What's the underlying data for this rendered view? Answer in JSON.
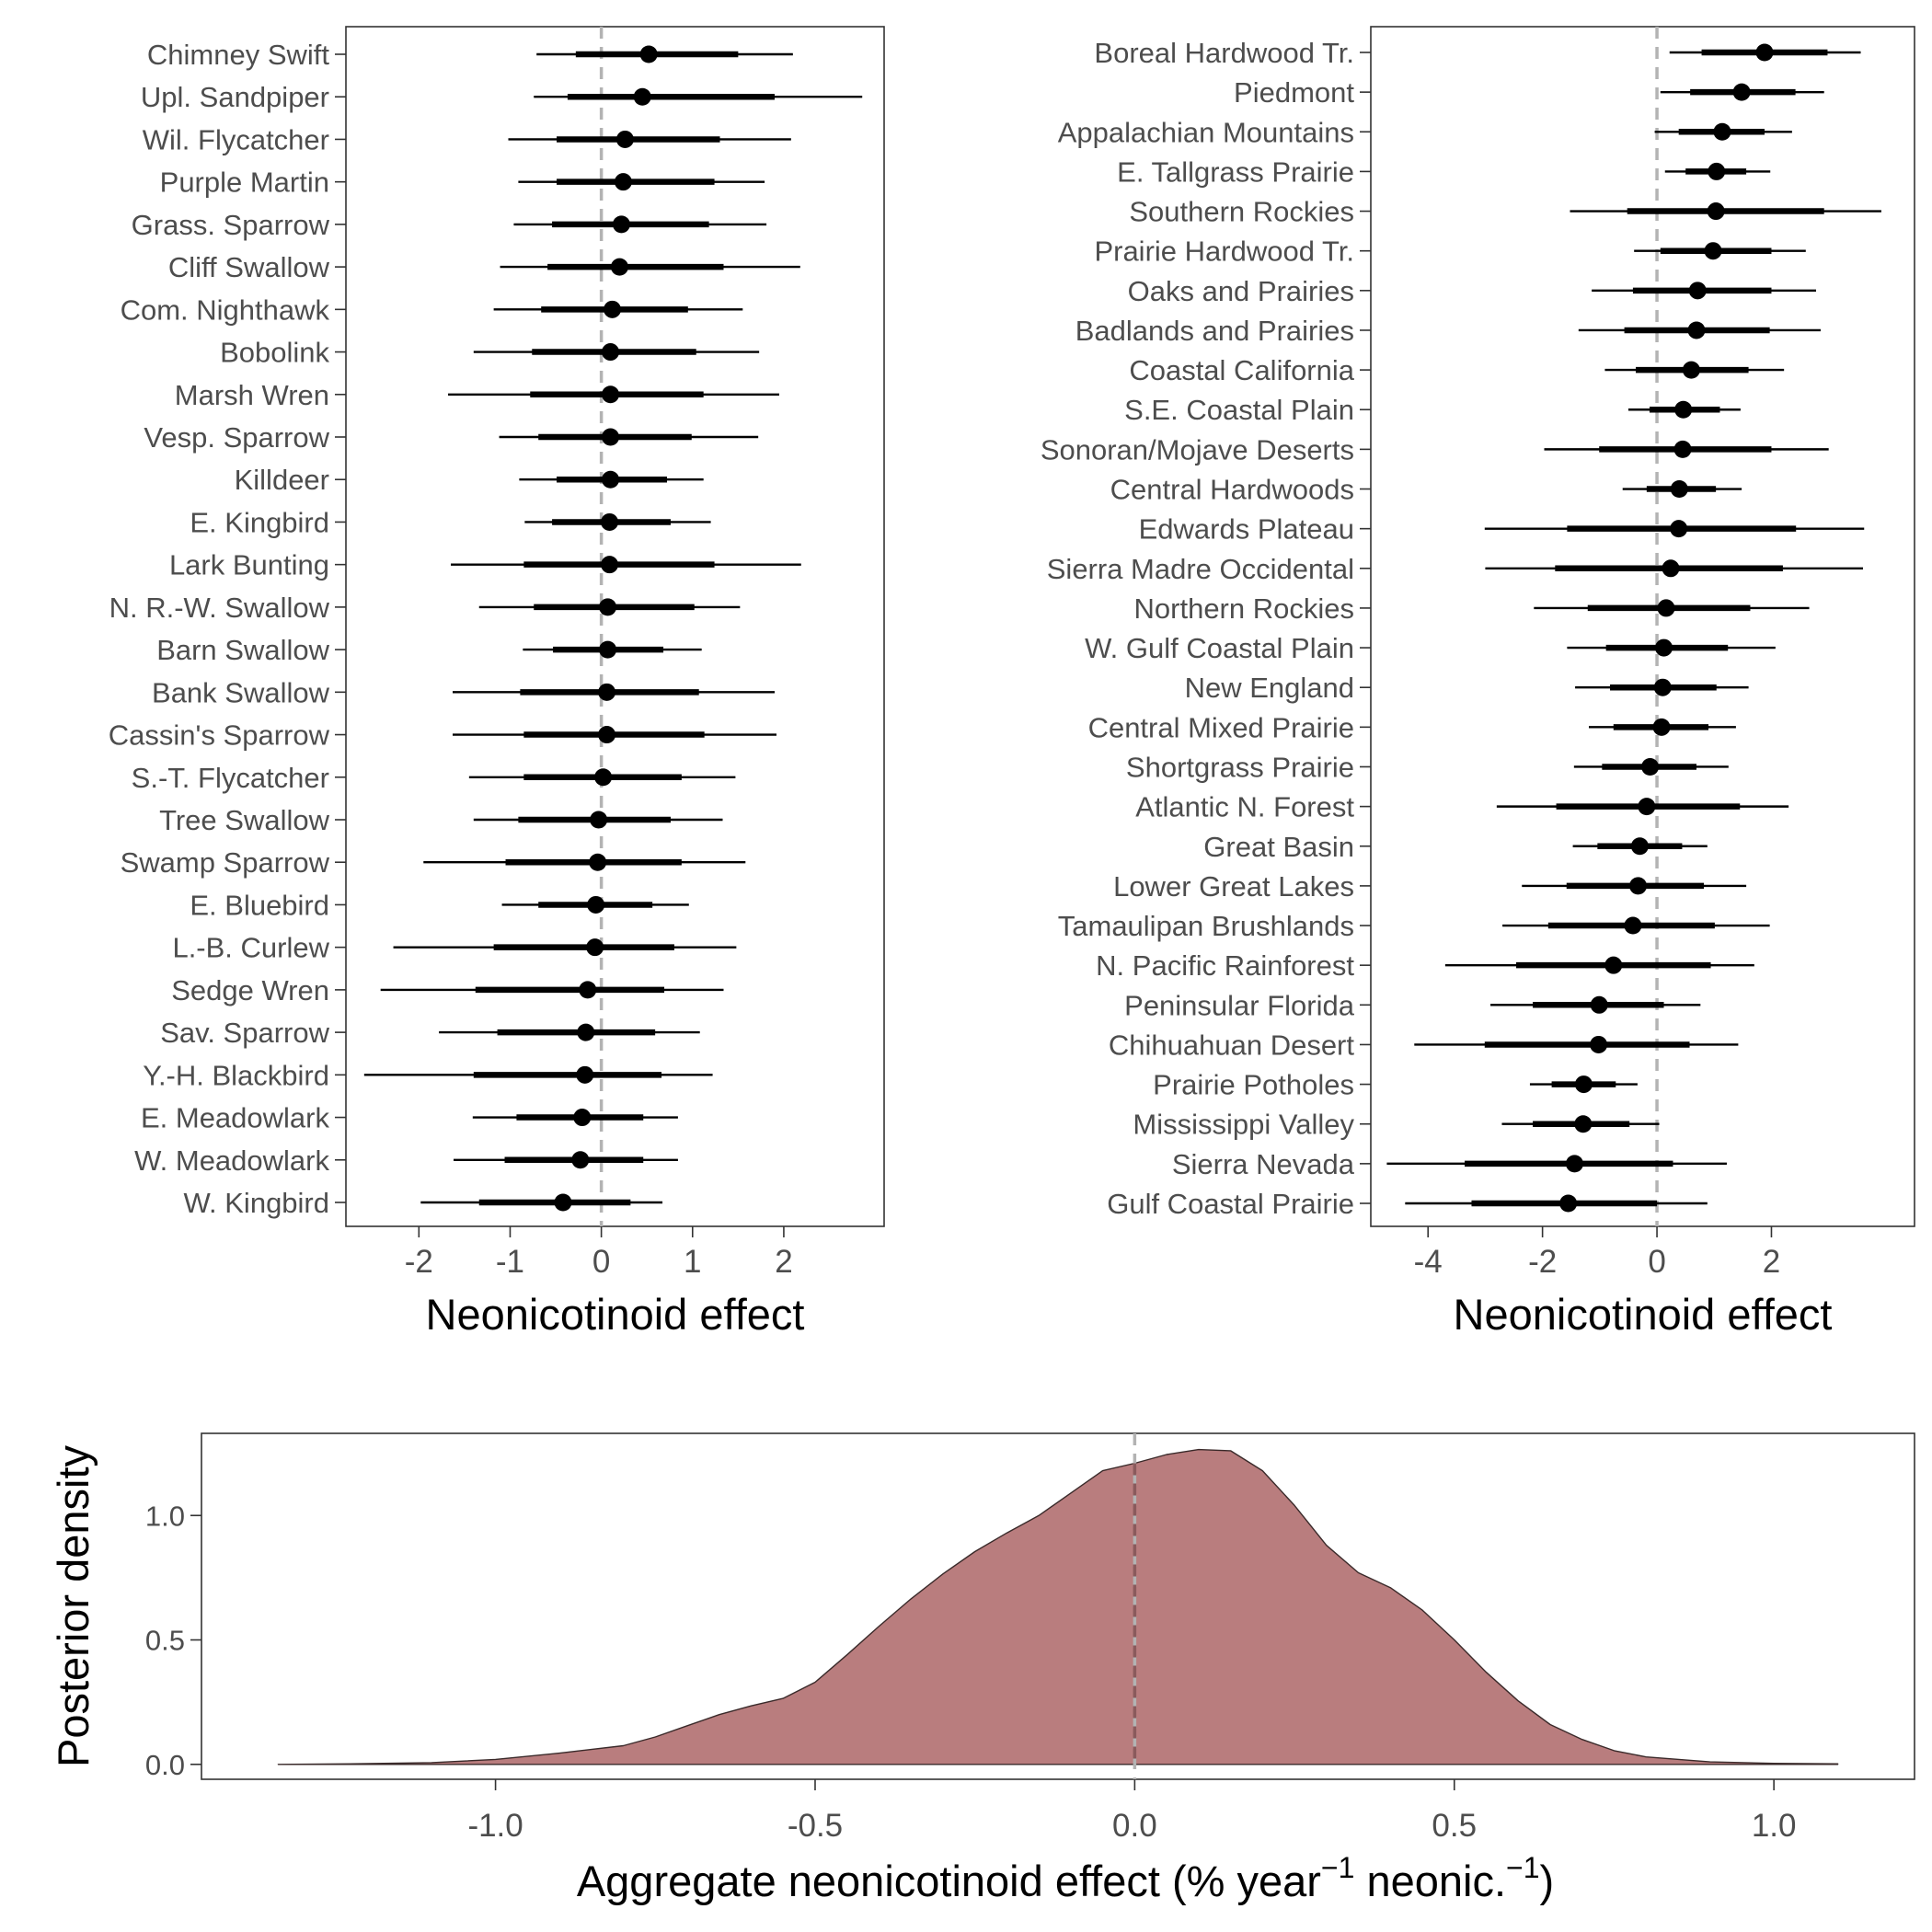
{
  "colors": {
    "mark": "#000000",
    "zero_line": "#b3b3b3",
    "density_fill": "#b97d7e",
    "density_outline": "#3a2a2a",
    "density_zero_line": "#8a5a5c",
    "panel_border": "#333333",
    "axis_text": "#4d4d4d",
    "title_text": "#000000"
  },
  "chart_data": [
    {
      "type": "forest",
      "panel": "species",
      "xlabel": "Neonicotinoid effect",
      "ylabel": "",
      "xlim": [
        -2.8,
        3.1
      ],
      "xticks": [
        -2,
        -1,
        0,
        1,
        2
      ],
      "xtick_labels": [
        "-2",
        "-1",
        "0",
        "1",
        "2"
      ],
      "reference_line": 0,
      "categories": [
        "Chimney Swift",
        "Upl. Sandpiper",
        "Wil. Flycatcher",
        "Purple Martin",
        "Grass. Sparrow",
        "Cliff Swallow",
        "Com. Nighthawk",
        "Bobolink",
        "Marsh Wren",
        "Vesp. Sparrow",
        "Killdeer",
        "E. Kingbird",
        "Lark Bunting",
        "N. R.-W. Swallow",
        "Barn Swallow",
        "Bank Swallow",
        "Cassin's Sparrow",
        "S.-T. Flycatcher",
        "Tree Swallow",
        "Swamp Sparrow",
        "E. Bluebird",
        "L.-B. Curlew",
        "Sedge Wren",
        "Sav. Sparrow",
        "Y.-H. Blackbird",
        "E. Meadowlark",
        "W. Meadowlark",
        "W. Kingbird"
      ],
      "median": [
        0.52,
        0.45,
        0.26,
        0.24,
        0.22,
        0.2,
        0.12,
        0.1,
        0.1,
        0.1,
        0.1,
        0.09,
        0.09,
        0.07,
        0.07,
        0.06,
        0.06,
        0.02,
        -0.03,
        -0.04,
        -0.06,
        -0.07,
        -0.15,
        -0.17,
        -0.18,
        -0.21,
        -0.23,
        -0.42
      ],
      "inner_lo": [
        -0.28,
        -0.37,
        -0.49,
        -0.49,
        -0.54,
        -0.59,
        -0.66,
        -0.76,
        -0.78,
        -0.69,
        -0.49,
        -0.54,
        -0.85,
        -0.74,
        -0.53,
        -0.89,
        -0.85,
        -0.85,
        -0.91,
        -1.05,
        -0.69,
        -1.18,
        -1.38,
        -1.14,
        -1.4,
        -0.93,
        -1.06,
        -1.34
      ],
      "inner_hi": [
        1.5,
        1.9,
        1.3,
        1.24,
        1.18,
        1.34,
        0.95,
        1.04,
        1.12,
        0.99,
        0.72,
        0.76,
        1.24,
        1.02,
        0.68,
        1.07,
        1.13,
        0.88,
        0.76,
        0.88,
        0.56,
        0.8,
        0.69,
        0.59,
        0.66,
        0.46,
        0.46,
        0.32
      ],
      "outer_lo": [
        -0.71,
        -0.74,
        -1.02,
        -0.91,
        -0.96,
        -1.11,
        -1.18,
        -1.4,
        -1.68,
        -1.12,
        -0.9,
        -0.84,
        -1.65,
        -1.34,
        -0.86,
        -1.63,
        -1.63,
        -1.45,
        -1.4,
        -1.95,
        -1.09,
        -2.28,
        -2.42,
        -1.78,
        -2.6,
        -1.41,
        -1.62,
        -1.98
      ],
      "outer_hi": [
        2.1,
        2.86,
        2.08,
        1.79,
        1.81,
        2.18,
        1.55,
        1.73,
        1.95,
        1.72,
        1.12,
        1.2,
        2.19,
        1.52,
        1.1,
        1.9,
        1.92,
        1.47,
        1.33,
        1.58,
        0.96,
        1.48,
        1.34,
        1.08,
        1.22,
        0.84,
        0.84,
        0.67
      ]
    },
    {
      "type": "forest",
      "panel": "regions",
      "xlabel": "Neonicotinoid effect",
      "ylabel": "",
      "xlim": [
        -5.0,
        4.5
      ],
      "xticks": [
        -4,
        -2,
        0,
        2
      ],
      "xtick_labels": [
        "-4",
        "-2",
        "0",
        "2"
      ],
      "reference_line": 0,
      "categories": [
        "Boreal Hardwood Tr.",
        "Piedmont",
        "Appalachian Mountains",
        "E. Tallgrass Prairie",
        "Southern Rockies",
        "Prairie Hardwood Tr.",
        "Oaks and Prairies",
        "Badlands and Prairies",
        "Coastal California",
        "S.E. Coastal Plain",
        "Sonoran/Mojave Deserts",
        "Central Hardwoods",
        "Edwards Plateau",
        "Sierra Madre Occidental",
        "Northern Rockies",
        "W. Gulf Coastal Plain",
        "New England",
        "Central Mixed Prairie",
        "Shortgrass Prairie",
        "Atlantic N. Forest",
        "Great Basin",
        "Lower Great Lakes",
        "Tamaulipan Brushlands",
        "N. Pacific Rainforest",
        "Peninsular Florida",
        "Chihuahuan Desert",
        "Prairie Potholes",
        "Mississippi Valley",
        "Sierra Nevada",
        "Gulf Coastal Prairie"
      ],
      "median": [
        1.88,
        1.48,
        1.14,
        1.04,
        1.03,
        0.98,
        0.71,
        0.69,
        0.6,
        0.46,
        0.45,
        0.39,
        0.38,
        0.24,
        0.16,
        0.12,
        0.1,
        0.08,
        -0.12,
        -0.18,
        -0.3,
        -0.33,
        -0.42,
        -0.76,
        -1.01,
        -1.02,
        -1.28,
        -1.29,
        -1.44,
        -1.55
      ],
      "inner_lo": [
        0.78,
        0.58,
        0.38,
        0.5,
        -0.52,
        0.06,
        -0.42,
        -0.57,
        -0.37,
        -0.13,
        -1.01,
        -0.18,
        -1.57,
        -1.78,
        -1.21,
        -0.89,
        -0.82,
        -0.76,
        -0.96,
        -1.76,
        -1.04,
        -1.58,
        -1.9,
        -2.46,
        -2.17,
        -3.01,
        -1.84,
        -2.17,
        -3.36,
        -3.24
      ],
      "inner_hi": [
        2.98,
        2.42,
        1.88,
        1.56,
        2.92,
        2.0,
        2.0,
        1.97,
        1.6,
        1.1,
        2.0,
        1.03,
        2.43,
        2.2,
        1.63,
        1.24,
        1.04,
        0.9,
        0.69,
        1.45,
        0.44,
        0.82,
        1.01,
        0.94,
        0.12,
        0.57,
        -0.72,
        -0.48,
        0.28,
        0.0
      ],
      "outer_lo": [
        0.22,
        0.06,
        -0.04,
        0.14,
        -1.52,
        -0.4,
        -1.14,
        -1.37,
        -0.91,
        -0.5,
        -1.97,
        -0.6,
        -3.01,
        -3.0,
        -2.15,
        -1.57,
        -1.43,
        -1.19,
        -1.45,
        -2.8,
        -1.47,
        -2.36,
        -2.7,
        -3.7,
        -2.91,
        -4.24,
        -2.22,
        -2.71,
        -4.72,
        -4.4
      ],
      "outer_hi": [
        3.56,
        2.92,
        2.36,
        1.98,
        3.92,
        2.6,
        2.78,
        2.86,
        2.22,
        1.46,
        3.0,
        1.48,
        3.62,
        3.6,
        2.66,
        2.07,
        1.6,
        1.38,
        1.25,
        2.3,
        0.88,
        1.56,
        1.97,
        1.7,
        0.76,
        1.42,
        -0.34,
        0.04,
        1.22,
        0.88
      ]
    },
    {
      "type": "area",
      "panel": "aggregate",
      "xlabel": "Aggregate neonicotinoid effect (% year",
      "xlabel_sup1": "−1",
      "xlabel_mid": " neonic.",
      "xlabel_sup2": "−1",
      "xlabel_end": ")",
      "ylabel": "Posterior density",
      "xlim": [
        -1.46,
        1.22
      ],
      "ylim": [
        -0.06,
        1.33
      ],
      "xticks": [
        -1.0,
        -0.5,
        0.0,
        0.5,
        1.0
      ],
      "xtick_labels": [
        "-1.0",
        "-0.5",
        "0.0",
        "0.5",
        "1.0"
      ],
      "yticks": [
        0.0,
        0.5,
        1.0
      ],
      "ytick_labels": [
        "0.0",
        "0.5",
        "1.0"
      ],
      "reference_line": 0,
      "x": [
        -1.34,
        -1.2,
        -1.1,
        -1.0,
        -0.9,
        -0.8,
        -0.75,
        -0.7,
        -0.65,
        -0.6,
        -0.55,
        -0.5,
        -0.45,
        -0.4,
        -0.35,
        -0.3,
        -0.25,
        -0.2,
        -0.15,
        -0.1,
        -0.05,
        0.0,
        0.05,
        0.1,
        0.15,
        0.2,
        0.25,
        0.3,
        0.35,
        0.4,
        0.45,
        0.5,
        0.55,
        0.6,
        0.65,
        0.7,
        0.75,
        0.8,
        0.9,
        1.0,
        1.1
      ],
      "y": [
        0.0,
        0.003,
        0.007,
        0.02,
        0.045,
        0.075,
        0.11,
        0.155,
        0.2,
        0.235,
        0.265,
        0.33,
        0.44,
        0.555,
        0.665,
        0.765,
        0.855,
        0.93,
        1.0,
        1.09,
        1.18,
        1.21,
        1.245,
        1.265,
        1.26,
        1.18,
        1.04,
        0.88,
        0.77,
        0.71,
        0.62,
        0.5,
        0.37,
        0.255,
        0.16,
        0.1,
        0.055,
        0.03,
        0.01,
        0.004,
        0.002
      ]
    }
  ]
}
